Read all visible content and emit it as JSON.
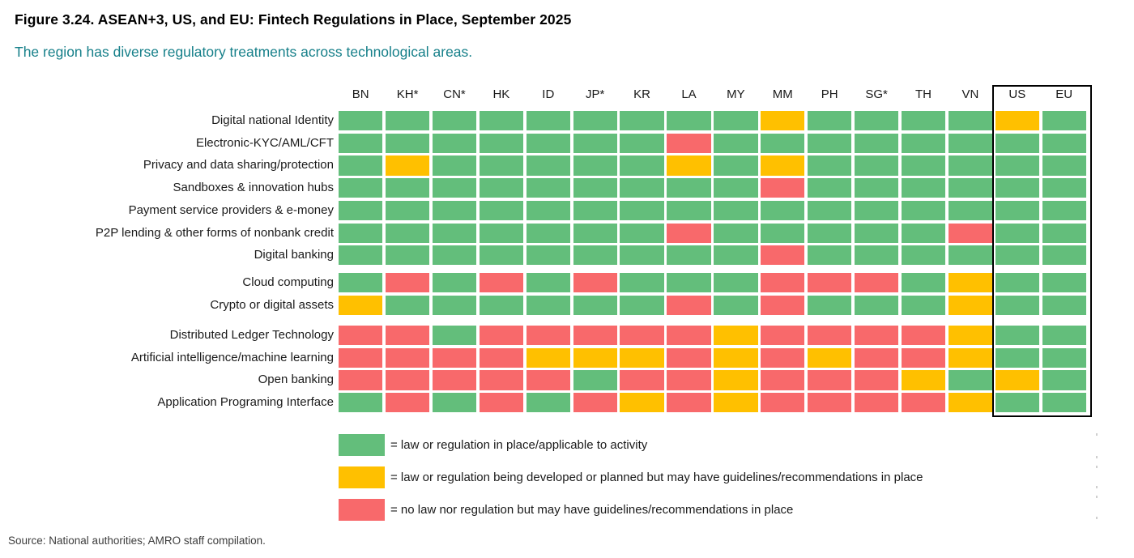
{
  "figure": {
    "title": "Figure 3.24. ASEAN+3, US, and EU: Fintech Regulations in Place, September 2025",
    "subtitle": "The region has diverse regulatory treatments across technological areas.",
    "source": "Source: National authorities; AMRO staff compilation."
  },
  "colors": {
    "green": "#63BE7B",
    "yellow": "#FFC000",
    "red": "#F8696B",
    "subtitle_text": "#17808A",
    "highlight_box_border": "#000000"
  },
  "chart_data": {
    "type": "heatmap",
    "columns": [
      "BN",
      "KH*",
      "CN*",
      "HK",
      "ID",
      "JP*",
      "KR",
      "LA",
      "MY",
      "MM",
      "PH",
      "SG*",
      "TH",
      "VN",
      "US",
      "EU"
    ],
    "highlighted_columns": [
      "US",
      "EU"
    ],
    "value_legend_map": {
      "G": "green",
      "Y": "yellow",
      "R": "red"
    },
    "row_groups": [
      {
        "rows": [
          {
            "label": "Digital national Identity",
            "values": [
              "G",
              "G",
              "G",
              "G",
              "G",
              "G",
              "G",
              "G",
              "G",
              "Y",
              "G",
              "G",
              "G",
              "G",
              "Y",
              "G"
            ]
          },
          {
            "label": "Electronic-KYC/AML/CFT",
            "values": [
              "G",
              "G",
              "G",
              "G",
              "G",
              "G",
              "G",
              "R",
              "G",
              "G",
              "G",
              "G",
              "G",
              "G",
              "G",
              "G"
            ]
          },
          {
            "label": "Privacy and data sharing/protection",
            "values": [
              "G",
              "Y",
              "G",
              "G",
              "G",
              "G",
              "G",
              "Y",
              "G",
              "Y",
              "G",
              "G",
              "G",
              "G",
              "G",
              "G"
            ]
          },
          {
            "label": "Sandboxes & innovation hubs",
            "values": [
              "G",
              "G",
              "G",
              "G",
              "G",
              "G",
              "G",
              "G",
              "G",
              "R",
              "G",
              "G",
              "G",
              "G",
              "G",
              "G"
            ]
          },
          {
            "label": "Payment service providers & e-money",
            "values": [
              "G",
              "G",
              "G",
              "G",
              "G",
              "G",
              "G",
              "G",
              "G",
              "G",
              "G",
              "G",
              "G",
              "G",
              "G",
              "G"
            ]
          },
          {
            "label": "P2P lending & other forms of nonbank credit",
            "values": [
              "G",
              "G",
              "G",
              "G",
              "G",
              "G",
              "G",
              "R",
              "G",
              "G",
              "G",
              "G",
              "G",
              "R",
              "G",
              "G"
            ]
          },
          {
            "label": "Digital banking",
            "values": [
              "G",
              "G",
              "G",
              "G",
              "G",
              "G",
              "G",
              "G",
              "G",
              "R",
              "G",
              "G",
              "G",
              "G",
              "G",
              "G"
            ]
          }
        ]
      },
      {
        "rows": [
          {
            "label": "Cloud computing",
            "values": [
              "G",
              "R",
              "G",
              "R",
              "G",
              "R",
              "G",
              "G",
              "G",
              "R",
              "R",
              "R",
              "G",
              "Y",
              "G",
              "G"
            ]
          },
          {
            "label": "Crypto or digital assets",
            "values": [
              "Y",
              "G",
              "G",
              "G",
              "G",
              "G",
              "G",
              "R",
              "G",
              "R",
              "G",
              "G",
              "G",
              "Y",
              "G",
              "G"
            ]
          }
        ]
      },
      {
        "rows": [
          {
            "label": "Distributed Ledger Technology",
            "values": [
              "R",
              "R",
              "G",
              "R",
              "R",
              "R",
              "R",
              "R",
              "Y",
              "R",
              "R",
              "R",
              "R",
              "Y",
              "G",
              "G"
            ]
          },
          {
            "label": "Artificial intelligence/machine learning",
            "values": [
              "R",
              "R",
              "R",
              "R",
              "Y",
              "Y",
              "Y",
              "R",
              "Y",
              "R",
              "Y",
              "R",
              "R",
              "Y",
              "G",
              "G"
            ]
          },
          {
            "label": "Open banking",
            "values": [
              "R",
              "R",
              "R",
              "R",
              "R",
              "G",
              "R",
              "R",
              "Y",
              "R",
              "R",
              "R",
              "Y",
              "G",
              "Y",
              "G"
            ]
          },
          {
            "label": "Application Programing Interface",
            "values": [
              "G",
              "R",
              "G",
              "R",
              "G",
              "R",
              "Y",
              "R",
              "Y",
              "R",
              "R",
              "R",
              "R",
              "Y",
              "G",
              "G"
            ]
          }
        ]
      }
    ],
    "legend": [
      {
        "color": "green",
        "label": "= law or regulation in place/applicable to activity"
      },
      {
        "color": "yellow",
        "label": "= law or regulation being developed or planned but may have guidelines/recommendations in place"
      },
      {
        "color": "red",
        "label": "= no law nor regulation but may have guidelines/recommendations in place"
      }
    ]
  }
}
